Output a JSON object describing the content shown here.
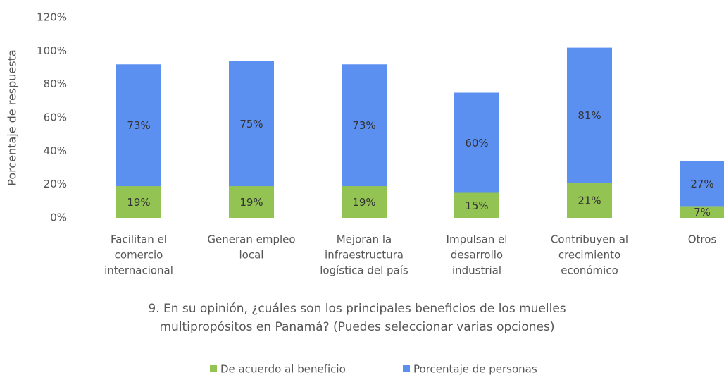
{
  "chart_data": {
    "type": "stacked_bar",
    "title": [
      "9. En su opinión, ¿cuáles son los principales beneficios de los muelles",
      "multipropósitos en Panamá? (Puedes seleccionar varias opciones)"
    ],
    "y_label": "Porcentaje de respuesta",
    "categories": [
      [
        "Facilitan el",
        "comercio",
        "internacional"
      ],
      [
        "Generan empleo",
        "local"
      ],
      [
        "Mejoran la",
        "infraestructura",
        "logística del país"
      ],
      [
        "Impulsan el",
        "desarrollo",
        "industrial"
      ],
      [
        "Contribuyen al",
        "crecimiento",
        "económico"
      ],
      [
        "Otros"
      ]
    ],
    "series": [
      {
        "name": "De acuerdo al beneficio",
        "color": "#92c353",
        "values": [
          19,
          19,
          19,
          15,
          21,
          7
        ],
        "value_labels": [
          "19%",
          "19%",
          "19%",
          "15%",
          "21%",
          "7%"
        ]
      },
      {
        "name": "Porcentaje de personas",
        "color": "#5b8ff0",
        "values": [
          73,
          75,
          73,
          60,
          81,
          27
        ],
        "value_labels": [
          "73%",
          "75%",
          "73%",
          "60%",
          "81%",
          "27%"
        ]
      }
    ],
    "ylim": [
      0,
      120
    ],
    "yticks": [
      {
        "value": 0,
        "label": "0%"
      },
      {
        "value": 20,
        "label": "20%"
      },
      {
        "value": 40,
        "label": "40%"
      },
      {
        "value": 60,
        "label": "60%"
      },
      {
        "value": 80,
        "label": "80%"
      },
      {
        "value": 100,
        "label": "100%"
      },
      {
        "value": 120,
        "label": "120%"
      }
    ],
    "legend": "bottom"
  }
}
